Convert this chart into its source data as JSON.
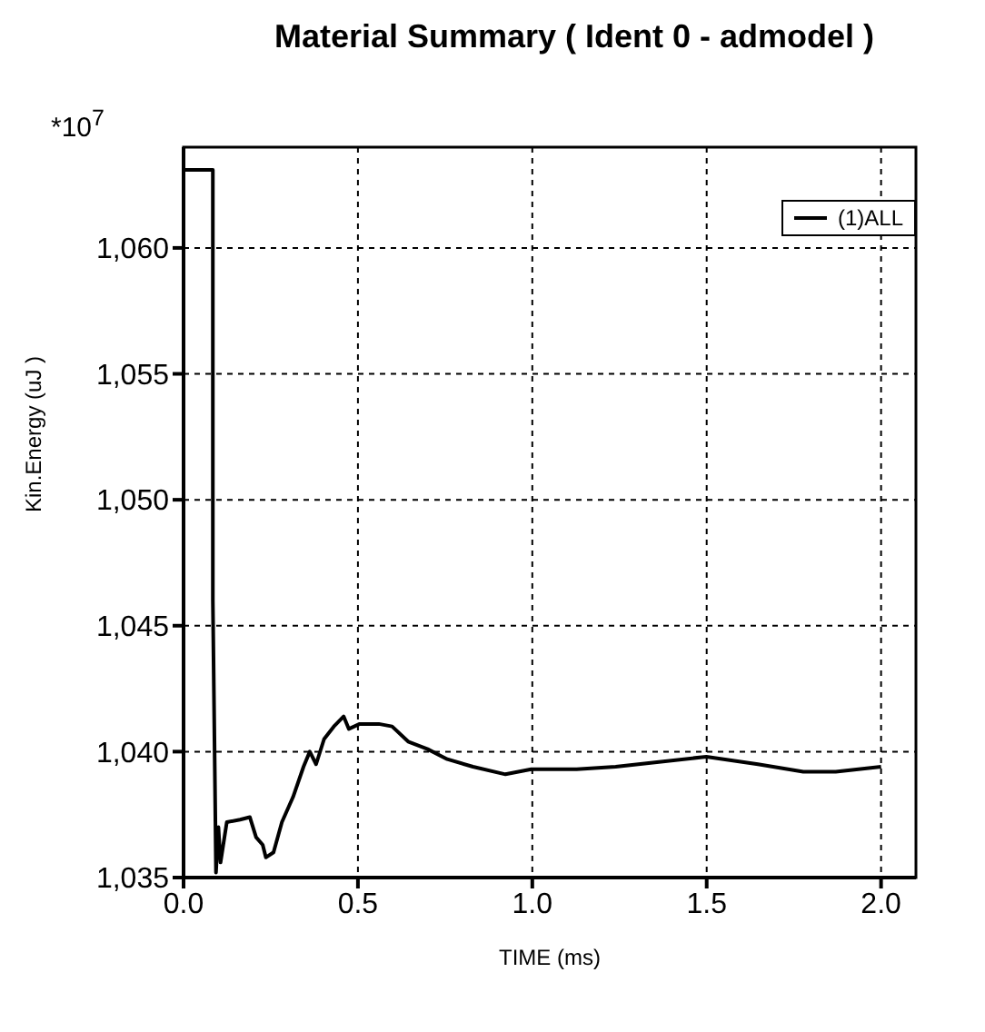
{
  "chart_data": {
    "type": "line",
    "title": "Material Summary ( Ident 0 - admodel )",
    "xlabel": "TIME (ms)",
    "ylabel": "Kin.Energy (uJ )",
    "annotations": [
      "*10$^{7}$"
    ],
    "xlim": [
      0,
      2.1
    ],
    "xticks": [
      {
        "value": 0,
        "label": "0.0"
      },
      {
        "value": 0.5,
        "label": "0.5"
      },
      {
        "value": 1,
        "label": "1.0"
      },
      {
        "value": 1.5,
        "label": "1.5"
      },
      {
        "value": 2,
        "label": "2.0"
      }
    ],
    "ylim": [
      1035,
      1064
    ],
    "yticks": [
      {
        "value": 1035,
        "label": "1,035"
      },
      {
        "value": 1040,
        "label": "1,040"
      },
      {
        "value": 1045,
        "label": "1,045"
      },
      {
        "value": 1050,
        "label": "1,050"
      },
      {
        "value": 1055,
        "label": "1,055"
      },
      {
        "value": 1060,
        "label": "1,060"
      }
    ],
    "grid": true,
    "legend": "top right",
    "marker": "none",
    "line_style": "solid",
    "series": [
      {
        "name": "(1)ALL",
        "color": "#000000",
        "x": [
          0,
          0.084,
          0.084,
          0.093,
          0.1,
          0.106,
          0.124,
          0.162,
          0.19,
          0.208,
          0.227,
          0.236,
          0.258,
          0.282,
          0.314,
          0.344,
          0.362,
          0.38,
          0.403,
          0.431,
          0.459,
          0.474,
          0.505,
          0.56,
          0.598,
          0.644,
          0.7,
          0.756,
          0.83,
          0.923,
          0.997,
          1.127,
          1.239,
          1.369,
          1.499,
          1.647,
          1.777,
          1.87,
          2.0
        ],
        "values": [
          1063.1,
          1063.1,
          1046,
          1035.2,
          1037,
          1035.6,
          1037.2,
          1037.3,
          1037.4,
          1036.6,
          1036.3,
          1035.8,
          1036,
          1037.2,
          1038.2,
          1039.4,
          1040,
          1039.5,
          1040.5,
          1041,
          1041.4,
          1040.9,
          1041.1,
          1041.1,
          1041,
          1040.4,
          1040.1,
          1039.7,
          1039.4,
          1039.1,
          1039.3,
          1039.3,
          1039.4,
          1039.6,
          1039.8,
          1039.5,
          1039.2,
          1039.2,
          1039.4
        ]
      }
    ]
  }
}
